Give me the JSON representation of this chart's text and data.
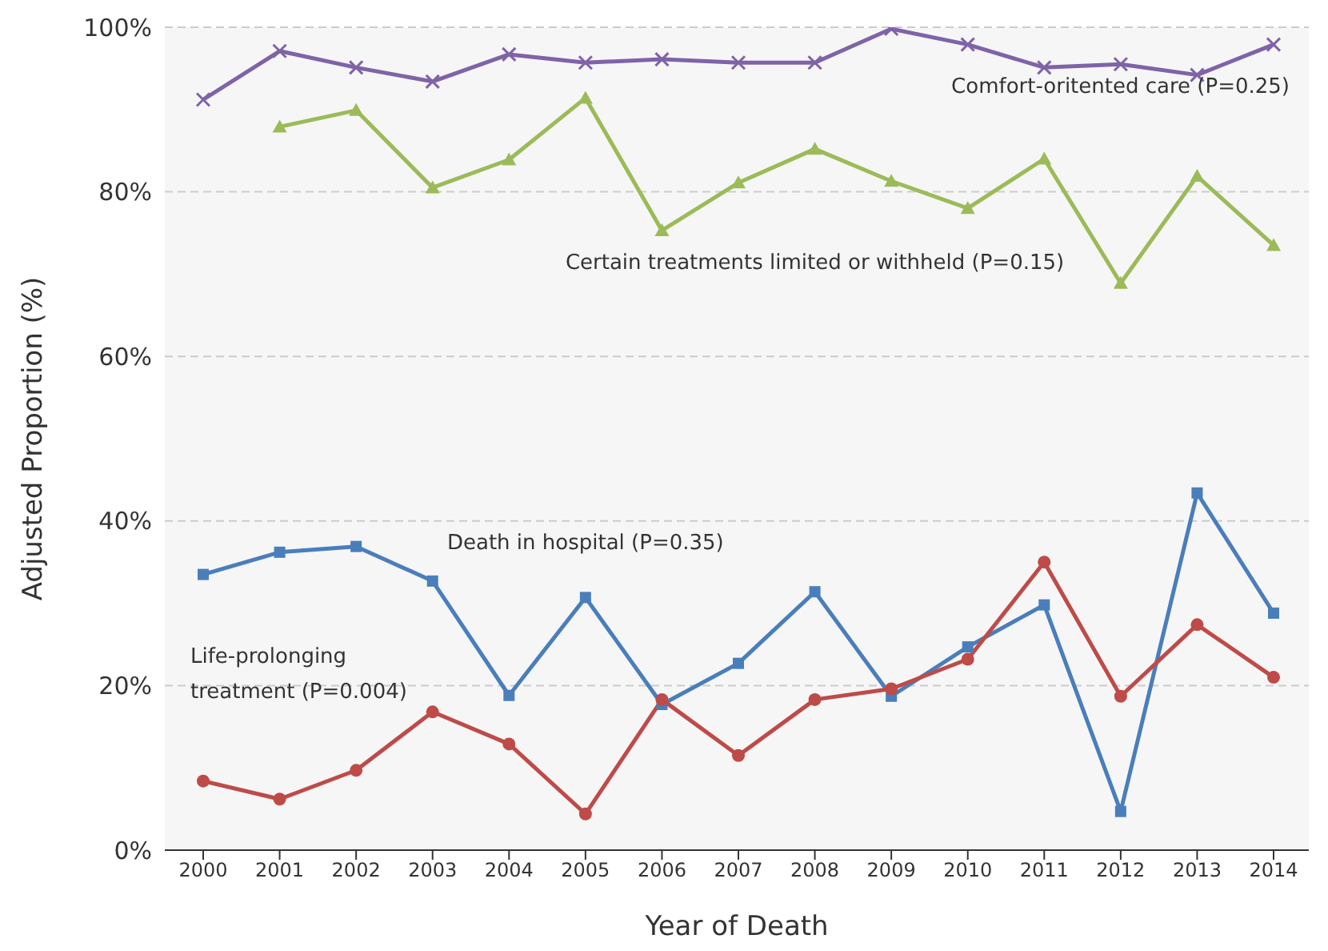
{
  "chart_data": {
    "type": "line",
    "xlabel": "Year of Death",
    "ylabel": "Adjusted Proportion (%)",
    "categories": [
      "2000",
      "2001",
      "2002",
      "2003",
      "2004",
      "2005",
      "2006",
      "2007",
      "2008",
      "2009",
      "2010",
      "2011",
      "2012",
      "2013",
      "2014"
    ],
    "series": [
      {
        "name": "Comfort-oritented care (P=0.25)",
        "color": "#7f63a8",
        "marker": "cross",
        "values": [
          91.2,
          97.1,
          95.1,
          93.4,
          96.7,
          95.7,
          96.1,
          95.7,
          95.7,
          99.8,
          97.9,
          95.1,
          95.5,
          94.2,
          97.9
        ]
      },
      {
        "name": "Certain treatments limited or withheld (P=0.15)",
        "color": "#9bbb59",
        "marker": "triangle",
        "values": [
          null,
          87.9,
          89.9,
          80.5,
          83.9,
          91.4,
          75.3,
          81.1,
          85.2,
          81.3,
          78.0,
          84.0,
          68.9,
          81.9,
          73.5
        ]
      },
      {
        "name": "Death in hospital (P=0.35)",
        "color": "#4a7ebb",
        "marker": "square",
        "values": [
          33.5,
          36.2,
          36.9,
          32.7,
          18.8,
          30.7,
          17.7,
          22.7,
          31.4,
          18.7,
          24.7,
          29.8,
          4.7,
          43.4,
          28.8
        ]
      },
      {
        "name": "Life-prolonging treatment (P=0.004)",
        "color": "#be4b48",
        "marker": "circle",
        "values": [
          8.4,
          6.2,
          9.7,
          16.8,
          12.9,
          4.4,
          18.3,
          11.5,
          18.3,
          19.6,
          23.2,
          35.0,
          18.7,
          27.4,
          21.0
        ]
      }
    ],
    "ylim": [
      0,
      100
    ],
    "yticks": [
      {
        "value": 0,
        "label": "0%"
      },
      {
        "value": 20,
        "label": "20%"
      },
      {
        "value": 40,
        "label": "40%"
      },
      {
        "value": 60,
        "label": "60%"
      },
      {
        "value": 80,
        "label": "80%"
      },
      {
        "value": 100,
        "label": "100%"
      }
    ],
    "grid": "y",
    "legend": false,
    "line_style": "solid"
  }
}
